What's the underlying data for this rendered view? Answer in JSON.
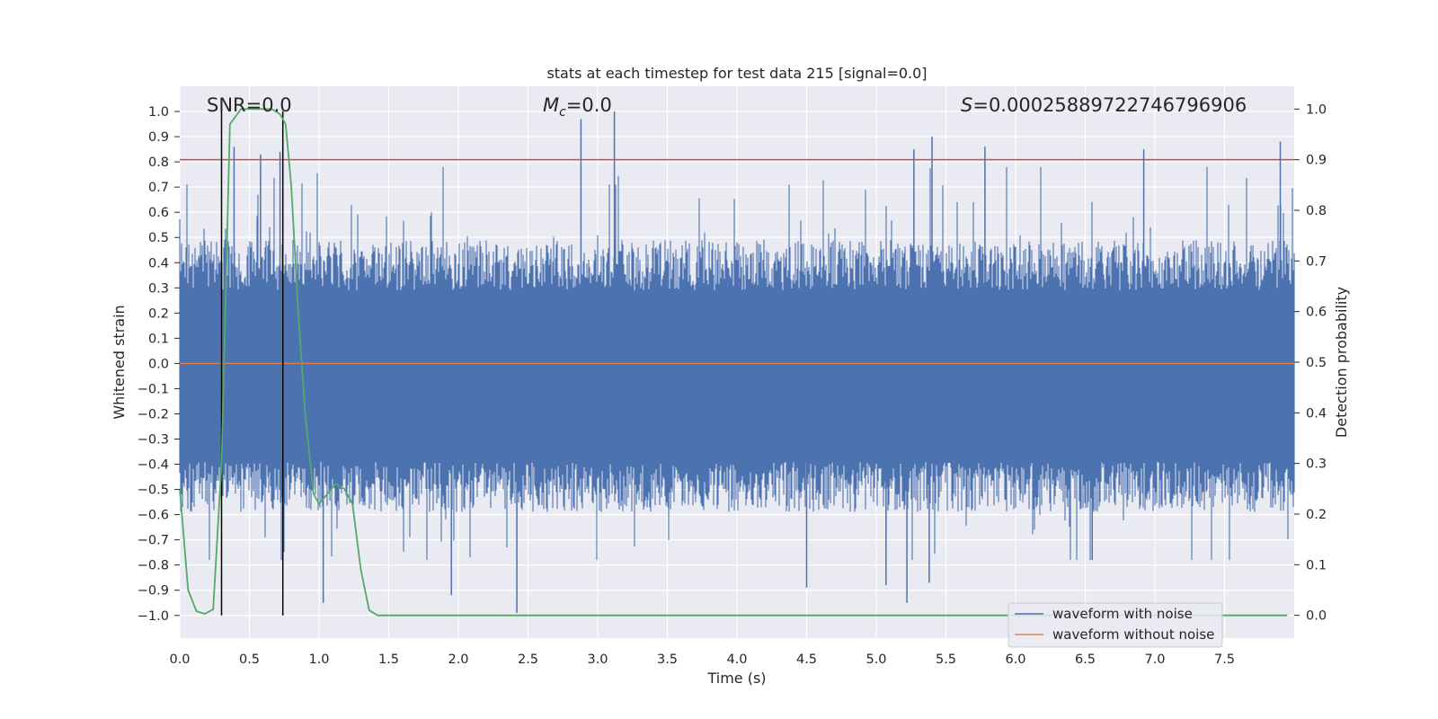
{
  "chart_data": {
    "type": "line",
    "title": "stats at each timestep for test data 215 [signal=0.0]",
    "xlabel": "Time (s)",
    "ylabel": "Whitened strain",
    "y2label": "Detection probability",
    "xlim": [
      0.0,
      8.0
    ],
    "ylim": [
      -1.09,
      1.1
    ],
    "y2lim": [
      -0.045,
      1.045
    ],
    "xticks": [
      "0.0",
      "0.5",
      "1.0",
      "1.5",
      "2.0",
      "2.5",
      "3.0",
      "3.5",
      "4.0",
      "4.5",
      "5.0",
      "5.5",
      "6.0",
      "6.5",
      "7.0",
      "7.5"
    ],
    "yticks": [
      "1.0",
      "0.9",
      "0.8",
      "0.7",
      "0.6",
      "0.5",
      "0.4",
      "0.3",
      "0.2",
      "0.1",
      "0.0",
      "−0.1",
      "−0.2",
      "−0.3",
      "−0.4",
      "−0.5",
      "−0.6",
      "−0.7",
      "−0.8",
      "−0.9",
      "−1.0"
    ],
    "y2ticks": [
      "1.0",
      "0.9",
      "0.8",
      "0.7",
      "0.6",
      "0.5",
      "0.4",
      "0.3",
      "0.2",
      "0.1",
      "0.0"
    ],
    "annotations": {
      "snr": "SNR=0.0",
      "mc_symbol": "M",
      "mc_sub": "c",
      "mc_value": "=0.0",
      "s_symbol": "S",
      "s_value": "=0.00025889722746796906"
    },
    "legend": {
      "position": "lower-right",
      "entries": [
        {
          "label": "waveform with noise",
          "color": "#4c72b0"
        },
        {
          "label": "waveform without noise",
          "color": "#dd8452"
        }
      ]
    },
    "threshold": {
      "y2": 0.9,
      "color": "#c44e52"
    },
    "signal_line": {
      "y": 0.0,
      "color": "#dd8452"
    },
    "vlines": {
      "x": [
        0.3,
        0.74
      ],
      "color": "#000000"
    },
    "waveform_with_noise": {
      "color": "#4c72b0",
      "dense_band": [
        -0.2,
        0.2
      ],
      "typical_envelope": [
        -0.45,
        0.35
      ],
      "peaks": [
        {
          "x": 0.39,
          "y": 0.86
        },
        {
          "x": 0.58,
          "y": 0.83
        },
        {
          "x": 0.72,
          "y": 0.84
        },
        {
          "x": 2.88,
          "y": 0.97
        },
        {
          "x": 3.12,
          "y": 1.0
        },
        {
          "x": 5.27,
          "y": 0.85
        },
        {
          "x": 5.4,
          "y": 0.9
        },
        {
          "x": 5.78,
          "y": 0.86
        },
        {
          "x": 6.92,
          "y": 0.85
        },
        {
          "x": 7.9,
          "y": 0.88
        }
      ],
      "troughs": [
        {
          "x": 1.03,
          "y": -0.95
        },
        {
          "x": 1.95,
          "y": -0.92
        },
        {
          "x": 2.42,
          "y": -0.99
        },
        {
          "x": 4.5,
          "y": -0.89
        },
        {
          "x": 5.07,
          "y": -0.88
        },
        {
          "x": 5.22,
          "y": -0.95
        },
        {
          "x": 5.38,
          "y": -0.87
        },
        {
          "x": 6.55,
          "y": -0.78
        }
      ]
    },
    "detection_probability": {
      "color": "#55a868",
      "x": [
        0.0,
        0.06,
        0.12,
        0.18,
        0.24,
        0.3,
        0.36,
        0.44,
        0.5,
        0.58,
        0.66,
        0.72,
        0.76,
        0.8,
        0.85,
        0.9,
        0.96,
        1.0,
        1.06,
        1.12,
        1.18,
        1.24,
        1.3,
        1.36,
        1.42,
        1.5,
        2.0,
        3.0,
        4.0,
        5.0,
        6.0,
        7.0,
        7.95
      ],
      "y": [
        0.25,
        0.05,
        0.008,
        0.003,
        0.012,
        0.3,
        0.97,
        1.0,
        1.0,
        1.0,
        1.0,
        0.99,
        0.97,
        0.85,
        0.6,
        0.4,
        0.24,
        0.22,
        0.24,
        0.26,
        0.25,
        0.22,
        0.09,
        0.01,
        0.0,
        0.0,
        0.0,
        0.0,
        0.0,
        0.0,
        0.0,
        0.0,
        0.0
      ]
    }
  }
}
